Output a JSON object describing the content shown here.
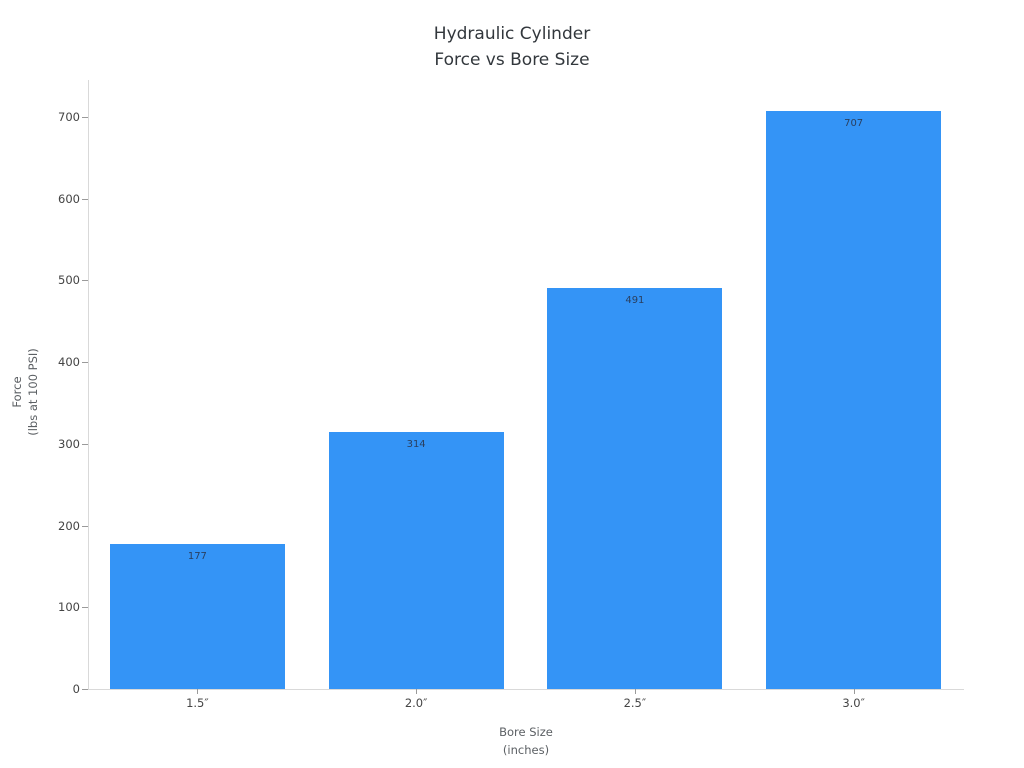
{
  "chart_data": {
    "type": "bar",
    "title": "Hydraulic Cylinder\nForce vs Bore Size",
    "title_lines": [
      "Hydraulic Cylinder",
      "Force vs Bore Size"
    ],
    "xlabel": "Bore Size\n(inches)",
    "xlabel_lines": [
      "Bore Size",
      "(inches)"
    ],
    "ylabel": "Force\n(lbs at 100 PSI)",
    "ylabel_lines": [
      "Force",
      "(lbs at 100 PSI)"
    ],
    "categories": [
      "1.5″",
      "2.0″",
      "2.5″",
      "3.0″"
    ],
    "values": [
      177,
      314,
      491,
      707
    ],
    "bar_labels": [
      "177",
      "314",
      "491",
      "707"
    ],
    "yticks": [
      0,
      100,
      200,
      300,
      400,
      500,
      600,
      700
    ],
    "ylim": [
      0,
      745
    ],
    "grid": false,
    "legend": "none",
    "bar_color": "#3494f6"
  },
  "colors": {
    "background": "#ffffff",
    "bar": "#3494f6",
    "axis_line": "#d9d9d9",
    "tick_mark": "#9a9a9a",
    "tick_label": "#444444",
    "title": "#32373c",
    "axis_title": "#5b5f63",
    "bar_value_label": "#2a3f5f"
  }
}
